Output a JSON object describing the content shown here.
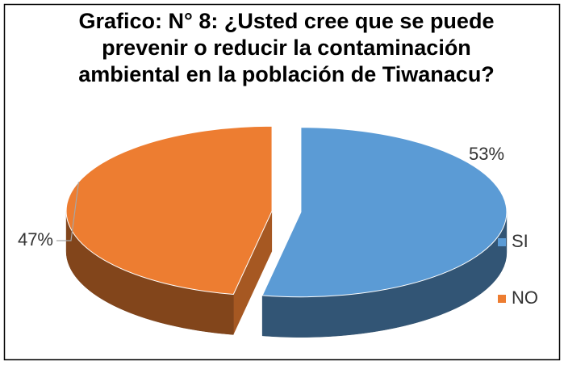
{
  "chart_data": {
    "type": "pie",
    "title": "Grafico: N° 8: ¿Usted cree que se puede prevenir o reducir la contaminación ambiental en la población de Tiwanacu?",
    "categories": [
      "SI",
      "NO"
    ],
    "values": [
      53,
      47
    ],
    "value_labels": [
      "53%",
      "47%"
    ],
    "colors": [
      "#5b9bd5",
      "#ed7d31"
    ],
    "legend": "right"
  }
}
